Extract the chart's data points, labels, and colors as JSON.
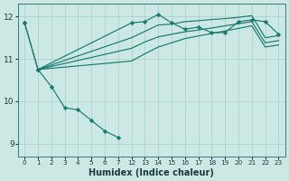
{
  "xlabel": "Humidex (Indice chaleur)",
  "background_color": "#cce8e4",
  "line_color": "#1a7a6e",
  "grid_color": "#aacfca",
  "xlim": [
    -0.5,
    19.5
  ],
  "ylim": [
    8.7,
    12.3
  ],
  "yticks": [
    9,
    10,
    11,
    12
  ],
  "xtick_labels": [
    "0",
    "1",
    "2",
    "3",
    "4",
    "5",
    "6",
    "7",
    "12",
    "13",
    "14",
    "15",
    "16",
    "17",
    "18",
    "19",
    "20",
    "21",
    "22",
    "23"
  ],
  "x_map": {
    "0": 0,
    "1": 1,
    "2": 2,
    "3": 3,
    "4": 4,
    "5": 5,
    "6": 6,
    "7": 7,
    "12": 8,
    "13": 9,
    "14": 10,
    "15": 11,
    "16": 12,
    "17": 13,
    "18": 14,
    "19": 15,
    "20": 16,
    "21": 17,
    "22": 18,
    "23": 19
  },
  "lines": [
    {
      "x_keys": [
        "0",
        "1"
      ],
      "y": [
        11.85,
        10.75
      ],
      "marker": true
    },
    {
      "x_keys": [
        "1",
        "2",
        "3",
        "4",
        "5",
        "6",
        "7"
      ],
      "y": [
        10.75,
        10.35,
        9.85,
        9.8,
        9.55,
        9.3,
        9.15
      ],
      "marker": true
    },
    {
      "x_keys": [
        "1",
        "12",
        "13",
        "14",
        "15",
        "16",
        "17",
        "18",
        "19",
        "20",
        "21",
        "22",
        "23"
      ],
      "y": [
        10.75,
        11.5,
        11.65,
        11.8,
        11.82,
        11.88,
        11.9,
        11.93,
        11.95,
        11.98,
        12.02,
        11.5,
        11.55
      ],
      "marker": false
    },
    {
      "x_keys": [
        "1",
        "12",
        "13",
        "14",
        "15",
        "16",
        "17",
        "18",
        "19",
        "20",
        "21",
        "22",
        "23"
      ],
      "y": [
        10.75,
        11.25,
        11.4,
        11.52,
        11.58,
        11.64,
        11.68,
        11.73,
        11.78,
        11.83,
        11.88,
        11.38,
        11.43
      ],
      "marker": false
    },
    {
      "x_keys": [
        "1",
        "12",
        "13",
        "14",
        "15",
        "16",
        "17",
        "18",
        "19",
        "20",
        "21",
        "22",
        "23"
      ],
      "y": [
        10.75,
        10.95,
        11.12,
        11.28,
        11.38,
        11.48,
        11.54,
        11.6,
        11.66,
        11.72,
        11.78,
        11.28,
        11.33
      ],
      "marker": false
    },
    {
      "x_keys": [
        "0",
        "1",
        "12",
        "13",
        "14",
        "15",
        "16",
        "17",
        "18",
        "19",
        "20",
        "21",
        "22",
        "23"
      ],
      "y": [
        11.85,
        10.75,
        11.85,
        11.88,
        12.05,
        11.85,
        11.7,
        11.75,
        11.62,
        11.62,
        11.88,
        11.92,
        11.88,
        11.58
      ],
      "marker": true
    }
  ]
}
